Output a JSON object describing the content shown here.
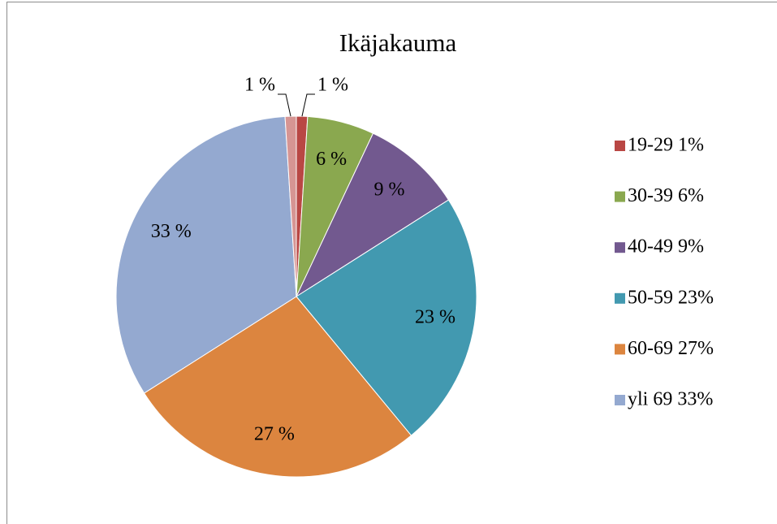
{
  "chart_data": {
    "type": "pie",
    "title": "Ikäjakauma",
    "categories": [
      "19-29 1%",
      "30-39 6%",
      "40-49 9%",
      "50-59 23%",
      "60-69 27%",
      "yli 69 33%",
      null
    ],
    "values": [
      1,
      6,
      9,
      23,
      27,
      33,
      1
    ],
    "value_labels": [
      "1 %",
      "6 %",
      "9 %",
      "23 %",
      "27 %",
      "33 %",
      "1 %"
    ],
    "colors": [
      "#b94744",
      "#8aa84f",
      "#72598f",
      "#4299b0",
      "#dc853f",
      "#94a9d0",
      "#d69593"
    ],
    "legend": "right"
  }
}
